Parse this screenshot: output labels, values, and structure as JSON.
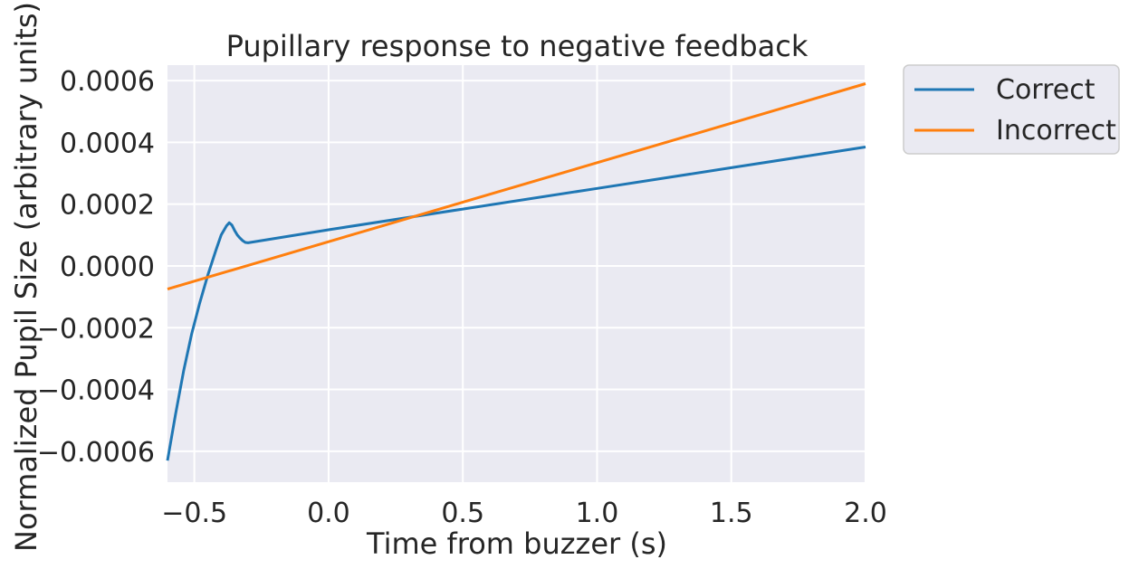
{
  "chart_data": {
    "type": "line",
    "title": "Pupillary response to negative feedback",
    "xlabel": "Time from buzzer (s)",
    "ylabel": "Normalized Pupil Size (arbitrary units)",
    "xlim": [
      -0.6,
      2.0
    ],
    "ylim": [
      -0.0007,
      0.00065
    ],
    "xticks": [
      -0.5,
      0.0,
      0.5,
      1.0,
      1.5,
      2.0
    ],
    "xtick_labels": [
      "−0.5",
      "0.0",
      "0.5",
      "1.0",
      "1.5",
      "2.0"
    ],
    "yticks": [
      -0.0006,
      -0.0004,
      -0.0002,
      0.0,
      0.0002,
      0.0004,
      0.0006
    ],
    "ytick_labels": [
      "−0.0006",
      "−0.0004",
      "−0.0002",
      "0.0000",
      "0.0002",
      "0.0004",
      "0.0006"
    ],
    "grid": true,
    "legend_position": "outside-right-top",
    "background": "#eaeaf2",
    "series": [
      {
        "name": "Correct",
        "color": "#1f77b4",
        "x": [
          -0.6,
          -0.57,
          -0.54,
          -0.51,
          -0.48,
          -0.45,
          -0.42,
          -0.4,
          -0.38,
          -0.37,
          -0.36,
          -0.35,
          -0.34,
          -0.33,
          -0.32,
          -0.31,
          -0.3,
          0.0,
          0.5,
          1.0,
          1.5,
          2.0
        ],
        "y": [
          -0.00063,
          -0.00048,
          -0.00034,
          -0.00022,
          -0.00012,
          -3e-05,
          5e-05,
          0.0001,
          0.00013,
          0.00014,
          0.000132,
          0.000115,
          0.0001,
          9e-05,
          8.2e-05,
          7.6e-05,
          7.5e-05,
          0.000117,
          0.000184,
          0.000251,
          0.000318,
          0.000385
        ]
      },
      {
        "name": "Incorrect",
        "color": "#ff7f0e",
        "x": [
          -0.6,
          2.0
        ],
        "y": [
          -7.5e-05,
          0.00059
        ]
      }
    ]
  }
}
